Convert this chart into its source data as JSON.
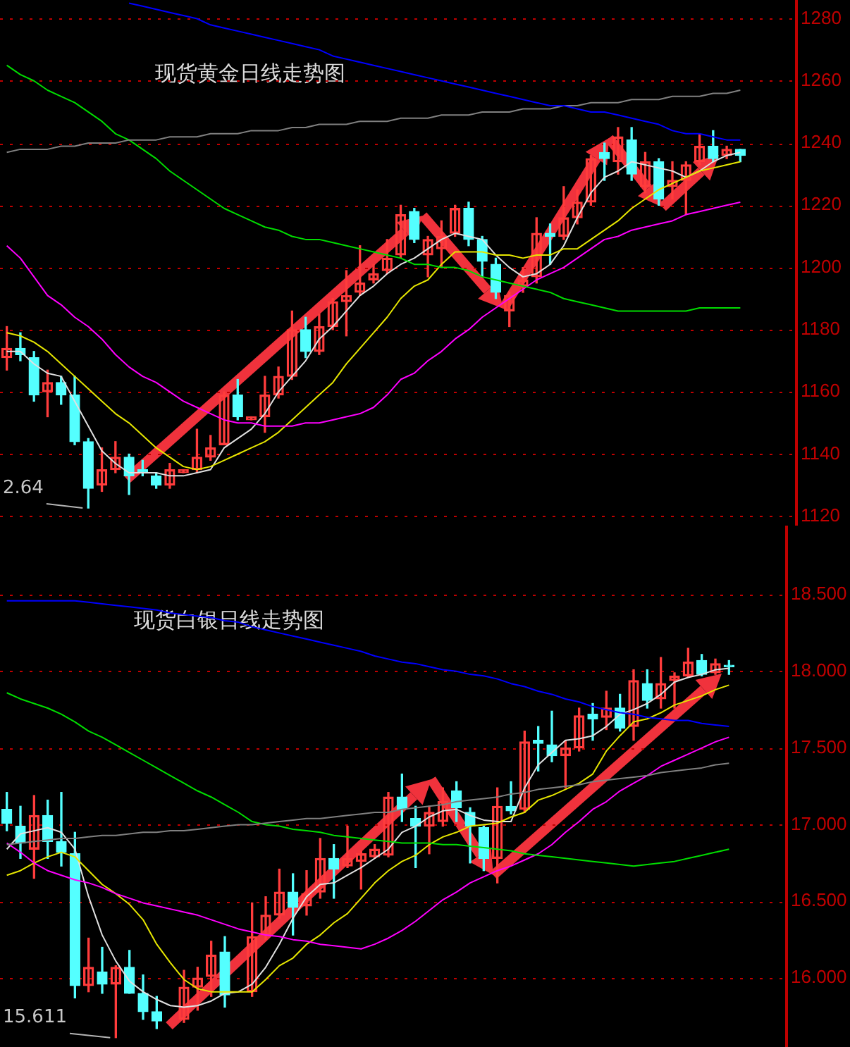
{
  "chart_data": [
    {
      "type": "candlestick",
      "title": "现货黄金日线走势图",
      "legend": false,
      "grid": "y",
      "tick_labels": "y",
      "categories": [
        null,
        null,
        null,
        null,
        null,
        null,
        null,
        null,
        null,
        null,
        null,
        null,
        null,
        null,
        null,
        null,
        null,
        null,
        null,
        null,
        null,
        null,
        null,
        null,
        null,
        null,
        null,
        null,
        null,
        null,
        null,
        null,
        null,
        null,
        null,
        null,
        null,
        null,
        null,
        null,
        null,
        null,
        null,
        null,
        null,
        null,
        null,
        null,
        null,
        null,
        null,
        null,
        null,
        null,
        null
      ],
      "ohlc": [
        [
          1171,
          1181,
          1167,
          1174
        ],
        [
          1174,
          1179,
          1170,
          1172
        ],
        [
          1171,
          1173,
          1157,
          1159
        ],
        [
          1160,
          1167,
          1152,
          1163
        ],
        [
          1163,
          1165,
          1156,
          1159
        ],
        [
          1159,
          1165,
          1143,
          1144
        ],
        [
          1144,
          1145,
          1122.64,
          1129
        ],
        [
          1130,
          1142,
          1128,
          1135
        ],
        [
          1135,
          1144,
          1134,
          1139
        ],
        [
          1139,
          1140,
          1127,
          1133
        ],
        [
          1135,
          1138,
          1133,
          1134
        ],
        [
          1133,
          1134,
          1129,
          1130
        ],
        [
          1130,
          1137,
          1129,
          1135
        ],
        [
          1134,
          1135,
          1134,
          1135
        ],
        [
          1135,
          1148,
          1134,
          1139
        ],
        [
          1139,
          1146,
          1138,
          1142
        ],
        [
          1143,
          1160,
          1143,
          1159
        ],
        [
          1159,
          1164,
          1151,
          1152
        ],
        [
          1151,
          1152,
          1151,
          1152
        ],
        [
          1152,
          1165,
          1147,
          1159
        ],
        [
          1159,
          1168,
          1158,
          1165
        ],
        [
          1165,
          1186,
          1164,
          1180
        ],
        [
          1180,
          1184,
          1171,
          1173
        ],
        [
          1173,
          1185,
          1172,
          1181
        ],
        [
          1181,
          1190,
          1180,
          1189
        ],
        [
          1189,
          1199,
          1178,
          1191
        ],
        [
          1192,
          1207,
          1191,
          1195
        ],
        [
          1196,
          1201,
          1195,
          1198
        ],
        [
          1199,
          1209,
          1198,
          1203
        ],
        [
          1204,
          1220,
          1203,
          1217
        ],
        [
          1218,
          1219,
          1208,
          1209
        ],
        [
          1204,
          1210,
          1197,
          1209
        ],
        [
          1206,
          1215,
          1200,
          1210
        ],
        [
          1211,
          1220,
          1210,
          1219
        ],
        [
          1219,
          1221,
          1207,
          1209
        ],
        [
          1209,
          1210,
          1197,
          1202
        ],
        [
          1201,
          1203,
          1190,
          1192
        ],
        [
          1186,
          1192,
          1181,
          1191
        ],
        [
          1194,
          1200,
          1192,
          1196
        ],
        [
          1197,
          1216,
          1195,
          1211
        ],
        [
          1211,
          1214,
          1201,
          1210
        ],
        [
          1210,
          1226,
          1209,
          1216
        ],
        [
          1216,
          1225,
          1214,
          1221
        ],
        [
          1221,
          1236,
          1220,
          1235
        ],
        [
          1237,
          1240,
          1228,
          1235
        ],
        [
          1234,
          1245,
          1230,
          1242
        ],
        [
          1241,
          1245,
          1228,
          1230
        ],
        [
          1226,
          1237,
          1224,
          1234
        ],
        [
          1234,
          1235,
          1220,
          1222
        ],
        [
          1226,
          1234,
          1222,
          1228
        ],
        [
          1228,
          1234,
          1217,
          1233
        ],
        [
          1234,
          1243,
          1233,
          1239
        ],
        [
          1239,
          1244,
          1234,
          1235
        ],
        [
          1236,
          1239,
          1235,
          1238
        ],
        [
          1238,
          1238,
          1234,
          1236
        ]
      ],
      "colors": [
        "#ff3c3c",
        "#54ffff",
        "#54ffff",
        "#ff3c3c",
        "#54ffff",
        "#54ffff",
        "#54ffff",
        "#ff3c3c",
        "#ff3c3c",
        "#54ffff",
        "#54ffff",
        "#54ffff",
        "#ff3c3c",
        "#ff3c3c",
        "#ff3c3c",
        "#ff3c3c",
        "#ff3c3c",
        "#54ffff",
        "#ff3c3c",
        "#ff3c3c",
        "#ff3c3c",
        "#ff3c3c",
        "#54ffff",
        "#ff3c3c",
        "#ff3c3c",
        "#ff3c3c",
        "#ff3c3c",
        "#ff3c3c",
        "#ff3c3c",
        "#ff3c3c",
        "#54ffff",
        "#ff3c3c",
        "#ff3c3c",
        "#ff3c3c",
        "#54ffff",
        "#54ffff",
        "#54ffff",
        "#ff3c3c",
        "#ff3c3c",
        "#ff3c3c",
        "#54ffff",
        "#ff3c3c",
        "#ff3c3c",
        "#ff3c3c",
        "#54ffff",
        "#ff3c3c",
        "#54ffff",
        "#ff3c3c",
        "#54ffff",
        "#ff3c3c",
        "#ff3c3c",
        "#ff3c3c",
        "#54ffff",
        "#ff3c3c",
        "#54ffff"
      ],
      "series": [
        {
          "type": "line",
          "color": "#0000ff",
          "values": [
            null,
            null,
            null,
            null,
            null,
            null,
            null,
            null,
            null,
            1285,
            1284,
            1283,
            1282,
            1281,
            1280,
            1278,
            1277,
            1276,
            1275,
            1274,
            1273,
            1272,
            1271,
            1270,
            1268,
            1267,
            1266,
            1265,
            1264,
            1263,
            1262,
            1261,
            1260,
            1259,
            1258,
            1257,
            1256,
            1255,
            1254,
            1253,
            1252,
            1252,
            1251,
            1250,
            1250,
            1249,
            1248,
            1247,
            1246,
            1244,
            1243,
            1243,
            1242,
            1241,
            1241
          ]
        },
        {
          "type": "line",
          "color": "#808080",
          "values": [
            1237,
            1238,
            1238,
            1238,
            1239,
            1239,
            1240,
            1240,
            1240,
            1241,
            1241,
            1241,
            1242,
            1242,
            1242,
            1243,
            1243,
            1243,
            1244,
            1244,
            1244,
            1245,
            1245,
            1246,
            1246,
            1246,
            1247,
            1247,
            1247,
            1248,
            1248,
            1248,
            1249,
            1249,
            1249,
            1250,
            1250,
            1250,
            1251,
            1251,
            1251,
            1252,
            1252,
            1253,
            1253,
            1253,
            1254,
            1254,
            1254,
            1255,
            1255,
            1255,
            1256,
            1256,
            1257
          ]
        },
        {
          "type": "line",
          "color": "#00dd00",
          "values": [
            1265,
            1262,
            1260,
            1257,
            1255,
            1253,
            1250,
            1247,
            1243,
            1241,
            1238,
            1235,
            1231,
            1228,
            1225,
            1222,
            1219,
            1217,
            1215,
            1213,
            1212,
            1210,
            1209,
            1209,
            1208,
            1207,
            1206,
            1205,
            1204,
            1203,
            1201,
            1201,
            1200,
            1200,
            1199,
            1197,
            1196,
            1195,
            1194,
            1193,
            1192,
            1190,
            1189,
            1188,
            1187,
            1186,
            1186,
            1186,
            1186,
            1186,
            1186,
            1187,
            1187,
            1187,
            1187
          ]
        },
        {
          "type": "line",
          "color": "#ff00ff",
          "values": [
            1207,
            1203,
            1197,
            1191,
            1188,
            1184,
            1181,
            1177,
            1172,
            1168,
            1165,
            1163,
            1160,
            1157,
            1155,
            1153,
            1151,
            1150,
            1150,
            1149,
            1149,
            1149,
            1150,
            1150,
            1151,
            1152,
            1153,
            1155,
            1159,
            1164,
            1166,
            1170,
            1173,
            1177,
            1180,
            1184,
            1187,
            1190,
            1193,
            1196,
            1198,
            1200,
            1203,
            1206,
            1209,
            1210,
            1212,
            1213,
            1214,
            1215,
            1217,
            1218,
            1219,
            1220,
            1221
          ]
        },
        {
          "type": "line",
          "color": "#e6e600",
          "values": [
            1179,
            1178,
            1176,
            1173,
            1169,
            1165,
            1161,
            1157,
            1153,
            1150,
            1146,
            1142,
            1139,
            1136,
            1135,
            1136,
            1138,
            1140,
            1142,
            1144,
            1147,
            1151,
            1155,
            1159,
            1163,
            1169,
            1174,
            1179,
            1184,
            1190,
            1194,
            1196,
            1201,
            1205,
            1205,
            1205,
            1204,
            1204,
            1203,
            1204,
            1204,
            1206,
            1206,
            1209,
            1212,
            1215,
            1219,
            1222,
            1225,
            1227,
            1229,
            1231,
            1232,
            1233,
            1234
          ]
        },
        {
          "type": "line",
          "color": "#e0e0e0",
          "values": [
            1173,
            1173,
            1169,
            1166,
            1165,
            1157,
            1149,
            1141,
            1137,
            1134,
            1134,
            1134,
            1133,
            1133,
            1134,
            1135,
            1142,
            1145,
            1148,
            1153,
            1160,
            1165,
            1170,
            1177,
            1181,
            1186,
            1191,
            1194,
            1198,
            1201,
            1203,
            1206,
            1209,
            1211,
            1210,
            1209,
            1204,
            1200,
            1197,
            1198,
            1201,
            1207,
            1216,
            1224,
            1229,
            1231,
            1234,
            1233,
            1232,
            1231,
            1229,
            1231,
            1234,
            1236,
            1237
          ]
        }
      ],
      "ylim": [
        1117,
        1286
      ],
      "yticks": [
        1120,
        1140,
        1160,
        1180,
        1200,
        1220,
        1240,
        1260,
        1280
      ],
      "annotations": [
        "2.64"
      ]
    },
    {
      "type": "candlestick",
      "title": "现货白银日线走势图",
      "legend": false,
      "grid": "y",
      "tick_labels": "y",
      "categories": [
        null,
        null,
        null,
        null,
        null,
        null,
        null,
        null,
        null,
        null,
        null,
        null,
        null,
        null,
        null,
        null,
        null,
        null,
        null,
        null,
        null,
        null,
        null,
        null,
        null,
        null,
        null,
        null,
        null,
        null,
        null,
        null,
        null,
        null,
        null,
        null,
        null,
        null,
        null,
        null,
        null,
        null,
        null,
        null,
        null,
        null,
        null,
        null,
        null,
        null,
        null,
        null,
        null,
        null
      ],
      "ohlc": [
        [
          17.1,
          17.21,
          16.96,
          17.01
        ],
        [
          16.99,
          17.12,
          16.78,
          16.88
        ],
        [
          16.84,
          17.19,
          16.65,
          17.06
        ],
        [
          17.06,
          17.16,
          16.78,
          16.89
        ],
        [
          16.89,
          17.21,
          16.73,
          16.82
        ],
        [
          16.81,
          16.95,
          15.87,
          15.95
        ],
        [
          15.95,
          16.26,
          15.91,
          16.07
        ],
        [
          16.04,
          16.2,
          15.9,
          15.96
        ],
        [
          15.96,
          16.08,
          15.611,
          16.07
        ],
        [
          16.07,
          16.18,
          15.9,
          15.9
        ],
        [
          15.9,
          16.02,
          15.73,
          15.78
        ],
        [
          15.78,
          15.88,
          15.67,
          15.72
        ],
        null,
        [
          15.73,
          16.05,
          15.71,
          15.94
        ],
        [
          15.94,
          16.07,
          15.79,
          16.0
        ],
        [
          16.01,
          16.24,
          15.88,
          16.15
        ],
        [
          16.17,
          16.27,
          15.81,
          15.89
        ],
        null,
        [
          15.91,
          16.49,
          15.88,
          16.27
        ],
        [
          16.28,
          16.53,
          16.25,
          16.41
        ],
        [
          16.41,
          16.71,
          16.39,
          16.56
        ],
        [
          16.56,
          16.68,
          16.28,
          16.46
        ],
        [
          16.47,
          16.7,
          16.41,
          16.55
        ],
        [
          16.56,
          16.91,
          16.52,
          16.78
        ],
        [
          16.78,
          16.87,
          16.52,
          16.71
        ],
        [
          16.73,
          16.99,
          16.72,
          16.78
        ],
        [
          16.76,
          16.83,
          16.58,
          16.81
        ],
        [
          16.79,
          16.87,
          16.78,
          16.84
        ],
        [
          16.8,
          17.21,
          16.79,
          17.18
        ],
        [
          17.18,
          17.33,
          17.02,
          17.1
        ],
        [
          17.04,
          17.12,
          16.72,
          16.99
        ],
        [
          16.99,
          17.12,
          16.81,
          17.08
        ],
        [
          17.02,
          17.24,
          16.99,
          17.15
        ],
        [
          17.22,
          17.28,
          17.02,
          17.11
        ],
        [
          17.08,
          17.11,
          16.75,
          16.99
        ],
        [
          16.98,
          16.99,
          16.7,
          16.78
        ],
        [
          16.78,
          17.24,
          16.62,
          17.12
        ],
        [
          17.12,
          17.28,
          17.07,
          17.09
        ],
        [
          17.1,
          17.61,
          17.08,
          17.54
        ],
        [
          17.55,
          17.64,
          17.35,
          17.53
        ],
        [
          17.52,
          17.74,
          17.41,
          17.45
        ],
        [
          17.45,
          17.55,
          17.24,
          17.5
        ],
        [
          17.5,
          17.76,
          17.48,
          17.71
        ],
        [
          17.72,
          17.79,
          17.55,
          17.69
        ],
        [
          17.7,
          17.87,
          17.62,
          17.76
        ],
        [
          17.76,
          17.85,
          17.61,
          17.63
        ],
        [
          17.64,
          18.01,
          17.55,
          17.94
        ],
        [
          17.92,
          18.01,
          17.76,
          17.81
        ],
        [
          17.82,
          18.09,
          17.76,
          17.92
        ],
        [
          17.94,
          17.99,
          17.76,
          17.97
        ],
        [
          17.97,
          18.15,
          17.96,
          18.06
        ],
        [
          18.07,
          18.11,
          17.97,
          17.98
        ],
        [
          17.99,
          18.08,
          17.98,
          18.05
        ],
        [
          18.04,
          18.07,
          17.98,
          18.03
        ]
      ],
      "colors": [
        "#54ffff",
        "#54ffff",
        "#ff3c3c",
        "#54ffff",
        "#54ffff",
        "#54ffff",
        "#ff3c3c",
        "#54ffff",
        "#ff3c3c",
        "#54ffff",
        "#54ffff",
        "#54ffff",
        null,
        "#ff3c3c",
        "#ff3c3c",
        "#ff3c3c",
        "#54ffff",
        null,
        "#ff3c3c",
        "#ff3c3c",
        "#ff3c3c",
        "#54ffff",
        "#ff3c3c",
        "#ff3c3c",
        "#54ffff",
        "#ff3c3c",
        "#ff3c3c",
        "#ff3c3c",
        "#ff3c3c",
        "#54ffff",
        "#54ffff",
        "#ff3c3c",
        "#ff3c3c",
        "#54ffff",
        "#54ffff",
        "#54ffff",
        "#ff3c3c",
        "#54ffff",
        "#ff3c3c",
        "#54ffff",
        "#54ffff",
        "#ff3c3c",
        "#ff3c3c",
        "#54ffff",
        "#ff3c3c",
        "#54ffff",
        "#ff3c3c",
        "#54ffff",
        "#ff3c3c",
        "#ff3c3c",
        "#ff3c3c",
        "#54ffff",
        "#ff3c3c",
        "#54ffff"
      ],
      "series": [
        {
          "type": "line",
          "color": "#0000ff",
          "values": [
            18.46,
            18.46,
            18.46,
            18.46,
            18.46,
            18.46,
            18.45,
            18.44,
            18.43,
            18.42,
            18.41,
            18.4,
            18.38,
            18.37,
            18.36,
            18.35,
            18.33,
            18.32,
            18.29,
            18.27,
            18.25,
            18.23,
            18.21,
            18.19,
            18.17,
            18.15,
            18.13,
            18.1,
            18.08,
            18.06,
            18.05,
            18.03,
            18.01,
            18.0,
            17.98,
            17.97,
            17.95,
            17.92,
            17.9,
            17.87,
            17.85,
            17.82,
            17.8,
            17.77,
            17.75,
            17.73,
            17.72,
            17.7,
            17.69,
            17.68,
            17.68,
            17.66,
            17.65,
            17.64
          ]
        },
        {
          "type": "line",
          "color": "#808080",
          "values": [
            16.87,
            16.88,
            16.89,
            16.9,
            16.91,
            16.91,
            16.92,
            16.93,
            16.93,
            16.94,
            16.95,
            16.95,
            16.96,
            16.96,
            16.97,
            16.98,
            16.99,
            17.0,
            17.0,
            17.01,
            17.02,
            17.03,
            17.04,
            17.04,
            17.05,
            17.06,
            17.07,
            17.08,
            17.08,
            17.1,
            17.11,
            17.12,
            17.13,
            17.15,
            17.16,
            17.17,
            17.18,
            17.2,
            17.21,
            17.23,
            17.24,
            17.25,
            17.26,
            17.28,
            17.29,
            17.3,
            17.31,
            17.32,
            17.34,
            17.35,
            17.36,
            17.37,
            17.39,
            17.4
          ]
        },
        {
          "type": "line",
          "color": "#00dd00",
          "values": [
            17.86,
            17.82,
            17.79,
            17.76,
            17.72,
            17.67,
            17.61,
            17.57,
            17.52,
            17.47,
            17.42,
            17.37,
            17.32,
            17.27,
            17.22,
            17.18,
            17.13,
            17.08,
            17.02,
            17.0,
            16.99,
            16.97,
            16.96,
            16.95,
            16.93,
            16.92,
            16.91,
            16.9,
            16.89,
            16.88,
            16.88,
            16.88,
            16.87,
            16.87,
            16.86,
            16.85,
            16.84,
            16.83,
            16.81,
            16.8,
            16.79,
            16.78,
            16.77,
            16.76,
            16.75,
            16.74,
            16.73,
            16.74,
            16.75,
            16.76,
            16.78,
            16.8,
            16.82,
            16.84
          ]
        },
        {
          "type": "line",
          "color": "#ff00ff",
          "values": [
            16.88,
            16.82,
            16.75,
            16.7,
            16.67,
            16.64,
            16.62,
            16.59,
            16.55,
            16.52,
            16.49,
            16.47,
            16.45,
            16.43,
            16.41,
            16.38,
            16.35,
            16.32,
            16.3,
            16.28,
            16.27,
            16.25,
            16.24,
            16.22,
            16.21,
            16.2,
            16.19,
            16.22,
            16.26,
            16.31,
            16.37,
            16.44,
            16.51,
            16.56,
            16.62,
            16.66,
            16.7,
            16.73,
            16.77,
            16.81,
            16.87,
            16.95,
            17.02,
            17.1,
            17.15,
            17.22,
            17.27,
            17.32,
            17.38,
            17.42,
            17.46,
            17.5,
            17.54,
            17.57
          ]
        },
        {
          "type": "line",
          "color": "#e6e600",
          "values": [
            16.67,
            16.7,
            16.75,
            16.79,
            16.82,
            16.79,
            16.7,
            16.61,
            16.55,
            16.48,
            16.38,
            16.22,
            16.1,
            15.99,
            15.93,
            15.91,
            15.91,
            15.91,
            15.91,
            15.99,
            16.08,
            16.13,
            16.22,
            16.28,
            16.36,
            16.42,
            16.52,
            16.62,
            16.7,
            16.76,
            16.8,
            16.87,
            16.92,
            16.95,
            16.99,
            17.0,
            17.01,
            17.05,
            17.08,
            17.16,
            17.19,
            17.23,
            17.27,
            17.33,
            17.48,
            17.58,
            17.67,
            17.69,
            17.73,
            17.78,
            17.81,
            17.84,
            17.88,
            17.91
          ]
        },
        {
          "type": "line",
          "color": "#e0e0e0",
          "values": [
            16.84,
            16.94,
            16.96,
            16.98,
            16.95,
            16.84,
            16.53,
            16.28,
            16.11,
            15.98,
            15.91,
            15.86,
            15.82,
            15.81,
            15.82,
            15.85,
            15.9,
            15.91,
            15.96,
            16.07,
            16.22,
            16.39,
            16.53,
            16.61,
            16.62,
            16.67,
            16.72,
            16.78,
            16.84,
            16.95,
            16.99,
            17.05,
            17.09,
            17.1,
            17.06,
            17.03,
            17.02,
            17.02,
            17.24,
            17.39,
            17.47,
            17.55,
            17.56,
            17.58,
            17.64,
            17.72,
            17.75,
            17.79,
            17.85,
            17.93,
            17.96,
            17.98,
            18.01,
            18.02
          ]
        }
      ],
      "ylim": [
        15.55,
        18.95
      ],
      "yticks": [
        {
          "value": 16,
          "label": "16.000"
        },
        {
          "value": 16.5,
          "label": "16.500"
        },
        {
          "value": 17,
          "label": "17.000"
        },
        {
          "value": 17.5,
          "label": "17.500"
        },
        {
          "value": 18,
          "label": "18.000"
        },
        {
          "value": 18.5,
          "label": "18.500"
        }
      ],
      "annotations": [
        "15.611"
      ]
    }
  ]
}
